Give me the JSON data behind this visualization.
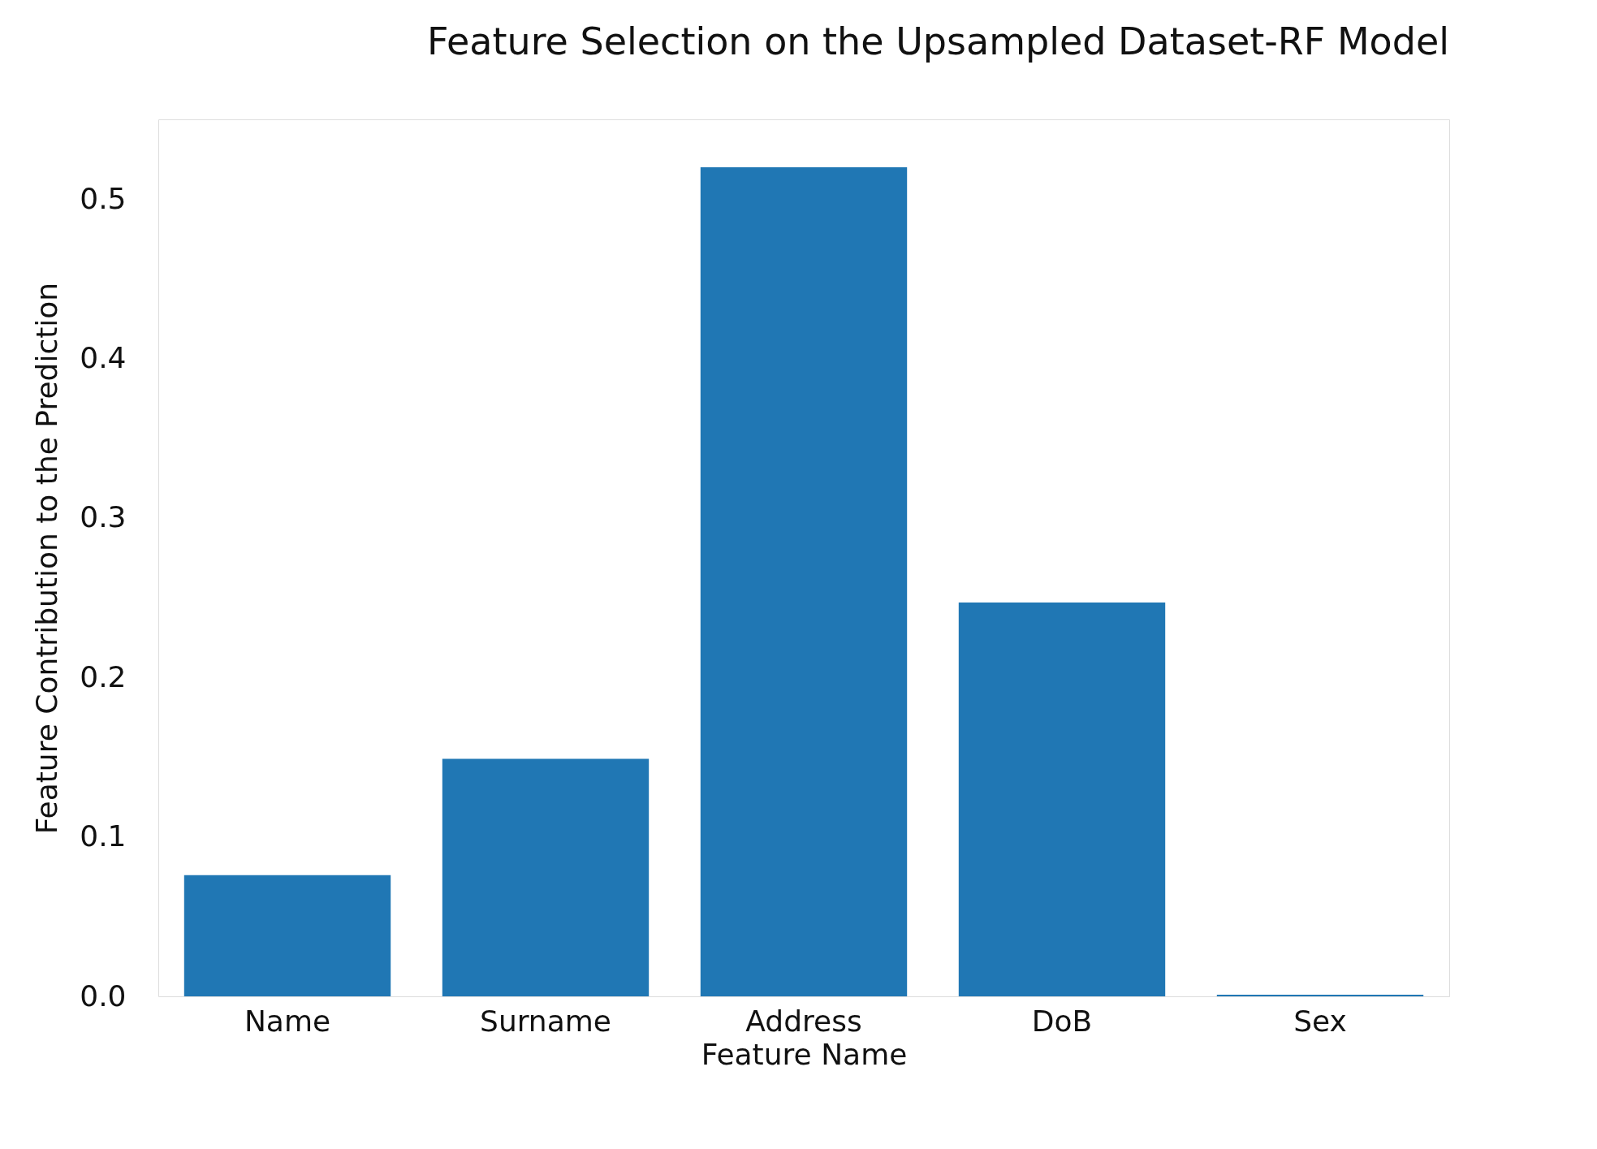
{
  "chart_data": {
    "type": "bar",
    "title": "Feature Selection on the Upsampled Dataset-RF Model",
    "xlabel": "Feature Name",
    "ylabel": "Feature Contribution to the Prediction",
    "categories": [
      "Name",
      "Surname",
      "Address",
      "DoB",
      "Sex"
    ],
    "values": [
      0.076,
      0.149,
      0.52,
      0.247,
      0.001
    ],
    "color": "#2077b4",
    "ylim": [
      0,
      0.55
    ],
    "yticks": [
      {
        "value": 0,
        "label": "0.0"
      },
      0.1,
      0.2,
      0.3,
      0.4,
      0.5
    ],
    "grid": false
  }
}
